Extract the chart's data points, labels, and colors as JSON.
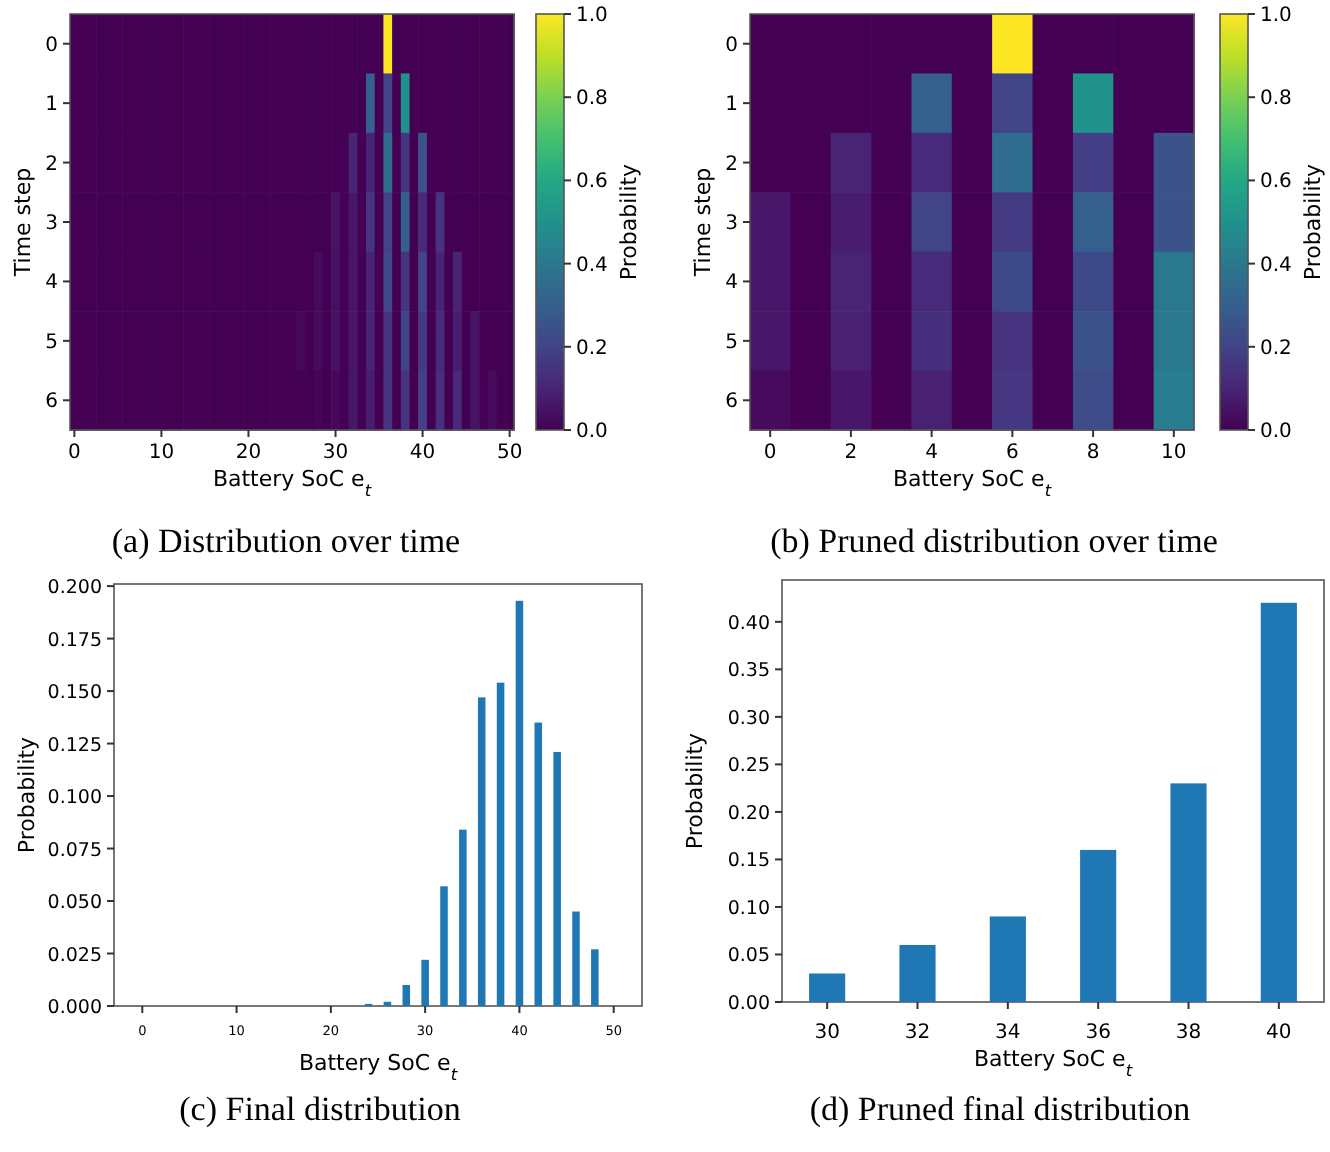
{
  "chart_data": [
    {
      "type": "heatmap",
      "title": "(a) Distribution over time",
      "xlabel": "Battery SoC e$_{t}$",
      "ylabel": "Time step",
      "clabel": "Probability",
      "categories": [
        "0",
        null,
        null,
        null,
        null,
        null,
        null,
        null,
        null,
        null,
        "10",
        null,
        null,
        null,
        null,
        null,
        null,
        null,
        null,
        null,
        "20",
        null,
        null,
        null,
        null,
        null,
        null,
        null,
        null,
        null,
        "30",
        null,
        null,
        null,
        null,
        null,
        null,
        null,
        null,
        null,
        "40",
        null,
        null,
        null,
        null,
        null,
        null,
        null,
        null,
        null,
        "50"
      ],
      "y_categories": [
        "0",
        "1",
        "2",
        "3",
        "4",
        "5",
        "6"
      ],
      "cells": [
        [
          0,
          0,
          0,
          0,
          0,
          0,
          0,
          0,
          0,
          0,
          0,
          0,
          0,
          0,
          0,
          0,
          0,
          0,
          0,
          0,
          0,
          0,
          0,
          0,
          0,
          0,
          0,
          0,
          0,
          0,
          0,
          0,
          0,
          0,
          0,
          0,
          1,
          0,
          0,
          0,
          0,
          0,
          0,
          0,
          0,
          0,
          0,
          0,
          0,
          0,
          0
        ],
        [
          0,
          0,
          0,
          0,
          0,
          0,
          0,
          0,
          0,
          0,
          0,
          0,
          0,
          0,
          0,
          0,
          0,
          0,
          0,
          0,
          0,
          0,
          0,
          0,
          0,
          0,
          0,
          0,
          0,
          0,
          0,
          0,
          0,
          0,
          0.3,
          0,
          0.2,
          0,
          0.5,
          0,
          0,
          0,
          0,
          0,
          0,
          0,
          0,
          0,
          0,
          0,
          0
        ],
        [
          0,
          0,
          0,
          0,
          0,
          0,
          0,
          0,
          0,
          0,
          0,
          0,
          0,
          0,
          0,
          0,
          0,
          0,
          0,
          0,
          0,
          0,
          0,
          0,
          0,
          0,
          0,
          0,
          0,
          0,
          0,
          0,
          0.1,
          0,
          0.1,
          0,
          0.35,
          0,
          0.15,
          0,
          0.25,
          0,
          0,
          0,
          0,
          0,
          0,
          0,
          0,
          0,
          0
        ],
        [
          0,
          0,
          0,
          0,
          0,
          0,
          0,
          0,
          0,
          0,
          0,
          0,
          0,
          0,
          0,
          0,
          0,
          0,
          0,
          0,
          0,
          0,
          0,
          0,
          0,
          0,
          0,
          0,
          0,
          0,
          0.05,
          0,
          0.06,
          0,
          0.15,
          0,
          0.2,
          0,
          0.3,
          0,
          0.12,
          0,
          0.15,
          0,
          0,
          0,
          0,
          0,
          0,
          0,
          0
        ],
        [
          0,
          0,
          0,
          0,
          0,
          0,
          0,
          0,
          0,
          0,
          0,
          0,
          0,
          0,
          0,
          0,
          0,
          0,
          0,
          0,
          0,
          0,
          0,
          0,
          0,
          0,
          0,
          0,
          0.03,
          0,
          0.04,
          0,
          0.06,
          0,
          0.1,
          0,
          0.22,
          0,
          0.15,
          0,
          0.2,
          0,
          0.1,
          0,
          0.1,
          0,
          0,
          0,
          0,
          0,
          0
        ],
        [
          0,
          0,
          0,
          0,
          0,
          0,
          0,
          0,
          0,
          0,
          0,
          0,
          0,
          0,
          0,
          0,
          0,
          0,
          0,
          0,
          0,
          0,
          0,
          0,
          0,
          0,
          0.02,
          0,
          0.03,
          0,
          0.04,
          0,
          0.06,
          0,
          0.1,
          0,
          0.15,
          0,
          0.2,
          0,
          0.17,
          0,
          0.12,
          0,
          0.08,
          0,
          0.05,
          0,
          0,
          0,
          0
        ],
        [
          0,
          0,
          0,
          0,
          0,
          0,
          0,
          0,
          0,
          0,
          0,
          0,
          0,
          0,
          0,
          0,
          0,
          0,
          0,
          0,
          0,
          0,
          0,
          0,
          0,
          0,
          0,
          0,
          0.01,
          0,
          0.02,
          0,
          0.06,
          0,
          0.08,
          0,
          0.15,
          0,
          0.15,
          0,
          0.19,
          0,
          0.14,
          0,
          0.12,
          0,
          0.05,
          0,
          0.03,
          0,
          0
        ]
      ],
      "clim": [
        0,
        1
      ],
      "cticks": [
        {
          "value": 0,
          "label": "0.0"
        },
        {
          "value": 0.2,
          "label": "0.2"
        },
        {
          "value": 0.4,
          "label": "0.4"
        },
        {
          "value": 0.6,
          "label": "0.6"
        },
        {
          "value": 0.8,
          "label": "0.8"
        },
        {
          "value": 1,
          "label": "1.0"
        }
      ]
    },
    {
      "type": "heatmap",
      "title": "(b) Pruned distribution over time",
      "xlabel": "Battery SoC e$_{t}$",
      "ylabel": "Time step",
      "clabel": "Probability",
      "categories": [
        "0",
        null,
        "2",
        null,
        "4",
        null,
        "6",
        null,
        "8",
        null,
        "10"
      ],
      "y_categories": [
        "0",
        "1",
        "2",
        "3",
        "4",
        "5",
        "6"
      ],
      "cells": [
        [
          0,
          0,
          0,
          0,
          0,
          0,
          1,
          0,
          0,
          0,
          0
        ],
        [
          0,
          0,
          0,
          0,
          0.3,
          0,
          0.2,
          0,
          0.5,
          0,
          0
        ],
        [
          0,
          0,
          0.1,
          0,
          0.12,
          0,
          0.35,
          0,
          0.18,
          0,
          0.25
        ],
        [
          0.06,
          0,
          0.08,
          0,
          0.2,
          0,
          0.17,
          0,
          0.3,
          0,
          0.25
        ],
        [
          0.06,
          0,
          0.1,
          0,
          0.12,
          0,
          0.22,
          0,
          0.22,
          0,
          0.4
        ],
        [
          0.06,
          0,
          0.09,
          0,
          0.14,
          0,
          0.15,
          0,
          0.25,
          0,
          0.4
        ],
        [
          0.03,
          0,
          0.06,
          0,
          0.09,
          0,
          0.16,
          0,
          0.23,
          0,
          0.42
        ]
      ],
      "clim": [
        0,
        1
      ],
      "cticks": [
        {
          "value": 0,
          "label": "0.0"
        },
        {
          "value": 0.2,
          "label": "0.2"
        },
        {
          "value": 0.4,
          "label": "0.4"
        },
        {
          "value": 0.6,
          "label": "0.6"
        },
        {
          "value": 0.8,
          "label": "0.8"
        },
        {
          "value": 1,
          "label": "1.0"
        }
      ]
    },
    {
      "type": "bar",
      "title": "(c) Final distribution",
      "xlabel": "Battery SoC e$_{t}$",
      "ylabel": "Probability",
      "color": "#1f77b4",
      "x": [
        24,
        26,
        28,
        30,
        32,
        34,
        36,
        38,
        40,
        42,
        44,
        46,
        48
      ],
      "values": [
        0.001,
        0.002,
        0.01,
        0.022,
        0.057,
        0.084,
        0.147,
        0.154,
        0.193,
        0.135,
        0.121,
        0.045,
        0.027
      ],
      "xlim": [
        -3,
        53
      ],
      "xticks": [
        0,
        10,
        20,
        30,
        40,
        50
      ],
      "ylim": [
        0,
        0.201
      ],
      "yticks": [
        {
          "value": 0,
          "label": "0.000"
        },
        {
          "value": 0.025,
          "label": "0.025"
        },
        {
          "value": 0.05,
          "label": "0.050"
        },
        {
          "value": 0.075,
          "label": "0.075"
        },
        {
          "value": 0.1,
          "label": "0.100"
        },
        {
          "value": 0.125,
          "label": "0.125"
        },
        {
          "value": 0.15,
          "label": "0.150"
        },
        {
          "value": 0.175,
          "label": "0.175"
        },
        {
          "value": 0.2,
          "label": "0.200"
        }
      ]
    },
    {
      "type": "bar",
      "title": "(d) Pruned final distribution",
      "xlabel": "Battery SoC e$_{t}$",
      "ylabel": "Probability",
      "color": "#1f77b4",
      "categories": [
        "30",
        "32",
        "34",
        "36",
        "38",
        "40"
      ],
      "values": [
        0.03,
        0.06,
        0.09,
        0.16,
        0.23,
        0.42
      ],
      "ylim": [
        0,
        0.444
      ],
      "yticks": [
        {
          "value": 0,
          "label": "0.00"
        },
        {
          "value": 0.05,
          "label": "0.05"
        },
        {
          "value": 0.1,
          "label": "0.10"
        },
        {
          "value": 0.15,
          "label": "0.15"
        },
        {
          "value": 0.2,
          "label": "0.20"
        },
        {
          "value": 0.25,
          "label": "0.25"
        },
        {
          "value": 0.3,
          "label": "0.30"
        },
        {
          "value": 0.35,
          "label": "0.35"
        },
        {
          "value": 0.4,
          "label": "0.40"
        }
      ]
    }
  ]
}
